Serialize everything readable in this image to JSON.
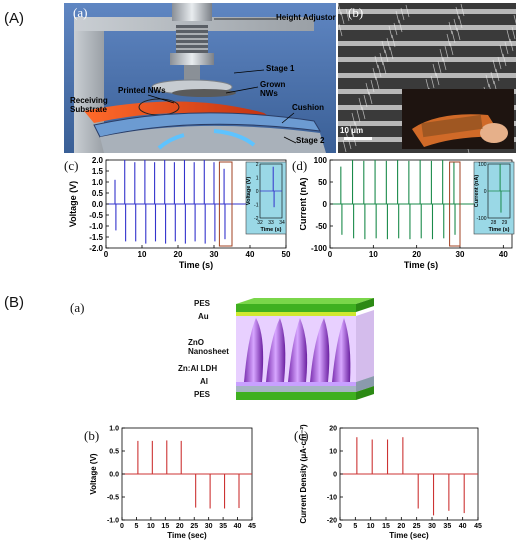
{
  "section_a": {
    "label": "(A)",
    "panel_a": {
      "label": "(a)",
      "callouts": {
        "height_adjustor": "Height Adjustor",
        "stage1": "Stage 1",
        "grown_nws": "Grown\nNWs",
        "printed_nws": "Printed NWs",
        "cushion": "Cushion",
        "receiving_substrate": "Receiving\nSubstrate",
        "stage2": "Stage 2"
      }
    },
    "panel_b": {
      "label": "(b)",
      "scale_bar": "10 μm"
    },
    "panel_c": {
      "label": "(c)"
    },
    "panel_d": {
      "label": "(d)"
    }
  },
  "section_b": {
    "label": "(B)",
    "panel_a": {
      "label": "(a)",
      "layers": {
        "pes_top": "PES",
        "au": "Au",
        "zno": "ZnO\nNanosheet",
        "ldh": "Zn:Al LDH",
        "al": "Al",
        "pes_bottom": "PES"
      }
    },
    "panel_b": {
      "label": "(b)"
    },
    "panel_c": {
      "label": "(c)"
    }
  },
  "colors": {
    "voltage_a": "#3333cc",
    "current_a": "#1a8a4a",
    "voltage_b": "#cc3333",
    "current_b": "#cc3333",
    "inset_bg": "#9ad8e6",
    "highlight_box": "#a04020"
  },
  "chart_data": [
    {
      "id": "A-c",
      "type": "line",
      "xlabel": "Time (s)",
      "ylabel": "Voltage (V)",
      "xlim": [
        0,
        50
      ],
      "ylim": [
        -2.0,
        2.0
      ],
      "xticks": [
        0,
        10,
        20,
        30,
        40,
        50
      ],
      "yticks": [
        -2.0,
        -1.5,
        -1.0,
        -0.5,
        0.0,
        0.5,
        1.0,
        1.5,
        2.0
      ],
      "ytick_labels": [
        "-2.0",
        "-1.5",
        "-1.0",
        "-0.5",
        "0.0",
        "0.5",
        "1.0",
        "1.5",
        "2.0"
      ],
      "pulses": [
        {
          "t": 2.5,
          "pos": 1.1,
          "neg": -1.2
        },
        {
          "t": 5.2,
          "pos": 2.0,
          "neg": -1.7
        },
        {
          "t": 8.0,
          "pos": 1.9,
          "neg": -1.7
        },
        {
          "t": 10.8,
          "pos": 2.0,
          "neg": -1.8
        },
        {
          "t": 13.5,
          "pos": 1.9,
          "neg": -1.7
        },
        {
          "t": 16.3,
          "pos": 2.0,
          "neg": -1.8
        },
        {
          "t": 19.0,
          "pos": 1.9,
          "neg": -1.7
        },
        {
          "t": 21.8,
          "pos": 2.0,
          "neg": -1.8
        },
        {
          "t": 24.5,
          "pos": 1.9,
          "neg": -1.7
        },
        {
          "t": 27.3,
          "pos": 2.0,
          "neg": -1.8
        },
        {
          "t": 30.0,
          "pos": 1.9,
          "neg": -1.7
        },
        {
          "t": 32.8,
          "pos": 1.6,
          "neg": -1.6
        }
      ],
      "highlight": [
        31.5,
        35
      ],
      "inset": {
        "xlabel": "Time (s)",
        "ylabel": "Voltage (V)",
        "xlim": [
          32,
          34
        ],
        "ylim": [
          -2,
          2
        ],
        "xticks": [
          32,
          33,
          34
        ],
        "yticks": [
          -2,
          -1,
          0,
          1,
          2
        ],
        "pulse": {
          "t": 33.2,
          "pos": 1.8,
          "neg": -1.2
        }
      }
    },
    {
      "id": "A-d",
      "type": "line",
      "xlabel": "Time (s)",
      "ylabel": "Current (nA)",
      "xlim": [
        0,
        42
      ],
      "ylim": [
        -100,
        100
      ],
      "xticks": [
        0,
        10,
        20,
        30,
        40
      ],
      "yticks": [
        -100,
        -50,
        0,
        50,
        100
      ],
      "ytick_labels": [
        "-100",
        "-50",
        "0",
        "50",
        "100"
      ],
      "pulses": [
        {
          "t": 2.5,
          "pos": 85,
          "neg": -70
        },
        {
          "t": 5.2,
          "pos": 100,
          "neg": -78
        },
        {
          "t": 7.8,
          "pos": 98,
          "neg": -80
        },
        {
          "t": 10.4,
          "pos": 100,
          "neg": -78
        },
        {
          "t": 13.0,
          "pos": 98,
          "neg": -80
        },
        {
          "t": 15.6,
          "pos": 100,
          "neg": -78
        },
        {
          "t": 18.2,
          "pos": 98,
          "neg": -80
        },
        {
          "t": 20.8,
          "pos": 100,
          "neg": -78
        },
        {
          "t": 23.4,
          "pos": 98,
          "neg": -80
        },
        {
          "t": 26.0,
          "pos": 100,
          "neg": -78
        },
        {
          "t": 28.6,
          "pos": 95,
          "neg": -70
        }
      ],
      "highlight": [
        27.6,
        30
      ],
      "inset": {
        "xlabel": "Time (s)",
        "ylabel": "Current (nA)",
        "xlim": [
          27.5,
          29.5
        ],
        "ylim": [
          -100,
          100
        ],
        "xticks": [
          28,
          29
        ],
        "yticks": [
          -100,
          0,
          100
        ],
        "pulse": {
          "t": 28.6,
          "pos": 100,
          "neg": -80
        }
      }
    },
    {
      "id": "B-b",
      "type": "line",
      "xlabel": "Time (sec)",
      "ylabel": "Voltage (V)",
      "xlim": [
        0,
        45
      ],
      "ylim": [
        -1.0,
        1.0
      ],
      "xticks": [
        0,
        5,
        10,
        15,
        20,
        25,
        30,
        35,
        40,
        45
      ],
      "yticks": [
        -1.0,
        -0.5,
        0.0,
        0.5,
        1.0
      ],
      "ytick_labels": [
        "-1.0",
        "-0.5",
        "0.0",
        "0.5",
        "1.0"
      ],
      "pulses": [
        {
          "t": 5.5,
          "pos": 0.72,
          "neg": 0
        },
        {
          "t": 10.5,
          "pos": 0.72,
          "neg": 0
        },
        {
          "t": 15.5,
          "pos": 0.73,
          "neg": 0
        },
        {
          "t": 20.5,
          "pos": 0.72,
          "neg": 0
        },
        {
          "t": 25.5,
          "pos": 0,
          "neg": -0.73
        },
        {
          "t": 30.5,
          "pos": 0,
          "neg": -0.75
        },
        {
          "t": 35.5,
          "pos": 0,
          "neg": -0.75
        },
        {
          "t": 40.5,
          "pos": 0,
          "neg": -0.74
        }
      ]
    },
    {
      "id": "B-c",
      "type": "line",
      "xlabel": "Time (sec)",
      "ylabel": "Current Density (μA·cm⁻²)",
      "xlim": [
        0,
        45
      ],
      "ylim": [
        -20,
        20
      ],
      "xticks": [
        0,
        5,
        10,
        15,
        20,
        25,
        30,
        35,
        40,
        45
      ],
      "yticks": [
        -20,
        -10,
        0,
        10,
        20
      ],
      "ytick_labels": [
        "-20",
        "-10",
        "0",
        "10",
        "20"
      ],
      "pulses": [
        {
          "t": 5.5,
          "pos": 16,
          "neg": 0
        },
        {
          "t": 10.5,
          "pos": 15,
          "neg": 0
        },
        {
          "t": 15.5,
          "pos": 15,
          "neg": 0
        },
        {
          "t": 20.5,
          "pos": 16,
          "neg": 0
        },
        {
          "t": 25.5,
          "pos": 0,
          "neg": -15
        },
        {
          "t": 30.5,
          "pos": 0,
          "neg": -18
        },
        {
          "t": 35.5,
          "pos": 0,
          "neg": -16
        },
        {
          "t": 40.5,
          "pos": 0,
          "neg": -17
        }
      ]
    }
  ]
}
